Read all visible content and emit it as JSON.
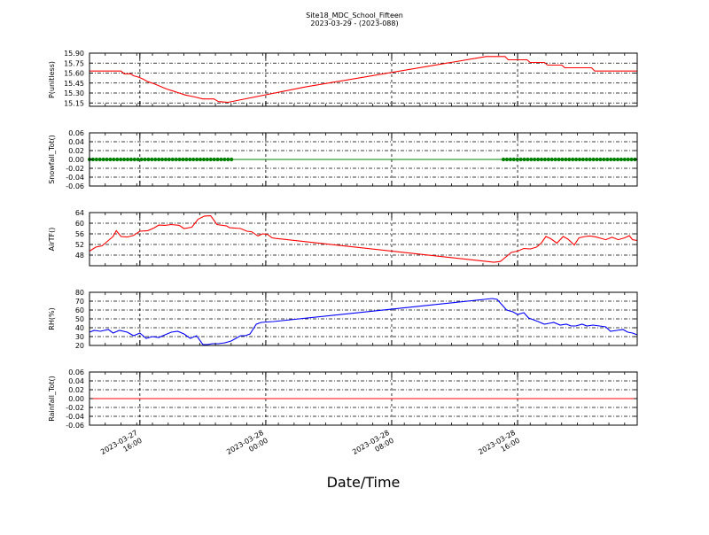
{
  "title": "Site18_MDC_School_Fifteen",
  "subtitle": "2023-03-29 - (2023-088)",
  "xlabel": "Date/Time",
  "x_ticks": [
    {
      "t": 16,
      "label": [
        "2023-03-27",
        "16:00"
      ]
    },
    {
      "t": 24,
      "label": [
        "2023-03-28",
        "00:00"
      ]
    },
    {
      "t": 32,
      "label": [
        "2023-03-28",
        "08:00"
      ]
    },
    {
      "t": 40,
      "label": [
        "2023-03-28",
        "16:00"
      ]
    }
  ],
  "x_range": [
    12.8,
    47.6
  ],
  "x_minor_ticks": [
    12.8,
    13.8,
    14.8,
    15.8,
    16.8,
    17.8,
    18.8,
    19.8,
    20.8,
    21.8,
    22.8,
    23.8,
    24.8,
    25.8,
    26.8,
    27.8,
    28.8,
    29.8,
    30.8,
    31.8,
    32.8,
    33.8,
    34.8,
    35.8,
    36.8,
    37.8,
    38.8,
    39.8,
    40.8,
    41.8,
    42.8,
    43.8,
    44.8,
    45.8,
    46.8,
    47.6
  ],
  "chart_data": [
    {
      "type": "line",
      "ylabel": "P(unitless)",
      "ylim": [
        15.1,
        15.9
      ],
      "yticks": [
        15.15,
        15.3,
        15.45,
        15.6,
        15.75,
        15.9
      ],
      "ytick_labels": [
        "15.15",
        "15.30",
        "15.45",
        "15.60",
        "15.75",
        "15.90"
      ],
      "grid": true,
      "series": [
        {
          "color": "#ff0000",
          "points": [
            [
              12.8,
              15.63
            ],
            [
              14.8,
              15.63
            ],
            [
              15.0,
              15.59
            ],
            [
              15.4,
              15.59
            ],
            [
              15.6,
              15.56
            ],
            [
              15.9,
              15.54
            ],
            [
              16.2,
              15.51
            ],
            [
              16.5,
              15.47
            ],
            [
              16.9,
              15.44
            ],
            [
              17.3,
              15.4
            ],
            [
              17.7,
              15.36
            ],
            [
              18.1,
              15.33
            ],
            [
              18.5,
              15.3
            ],
            [
              18.9,
              15.27
            ],
            [
              19.5,
              15.24
            ],
            [
              20.0,
              15.21
            ],
            [
              20.7,
              15.21
            ],
            [
              21.0,
              15.17
            ],
            [
              21.6,
              15.16
            ],
            [
              26.5,
              15.39
            ],
            [
              38.0,
              15.85
            ],
            [
              39.2,
              15.85
            ],
            [
              39.4,
              15.8
            ],
            [
              40.6,
              15.8
            ],
            [
              40.8,
              15.76
            ],
            [
              41.7,
              15.76
            ],
            [
              41.9,
              15.72
            ],
            [
              42.8,
              15.72
            ],
            [
              43.0,
              15.68
            ],
            [
              44.7,
              15.68
            ],
            [
              44.9,
              15.63
            ],
            [
              47.6,
              15.63
            ]
          ]
        }
      ]
    },
    {
      "type": "scatter",
      "ylabel": "Snowfall_Tot()",
      "ylim": [
        -0.06,
        0.06
      ],
      "yticks": [
        -0.06,
        -0.04,
        -0.02,
        0.0,
        0.02,
        0.04,
        0.06
      ],
      "ytick_labels": [
        "-0.06",
        "-0.04",
        "-0.02",
        "0.00",
        "0.02",
        "0.04",
        "0.06"
      ],
      "grid": true,
      "line_value": 0,
      "line_color": "#008000",
      "marker_color": "#008000",
      "marker_ranges": [
        [
          12.8,
          21.9
        ],
        [
          39.1,
          47.6
        ]
      ],
      "marker_step": 0.22
    },
    {
      "type": "line",
      "ylabel": "AirTF()",
      "ylim": [
        44,
        64
      ],
      "yticks": [
        48,
        52,
        56,
        60,
        64
      ],
      "ytick_labels": [
        "48",
        "52",
        "56",
        "60",
        "64"
      ],
      "grid": true,
      "series": [
        {
          "color": "#ff0000",
          "points": [
            [
              12.8,
              49.5
            ],
            [
              13.2,
              51
            ],
            [
              13.6,
              51.5
            ],
            [
              14.0,
              53.5
            ],
            [
              14.3,
              55
            ],
            [
              14.5,
              57.2
            ],
            [
              14.8,
              55
            ],
            [
              15.2,
              54.8
            ],
            [
              15.6,
              55.4
            ],
            [
              16.0,
              57.0
            ],
            [
              16.5,
              57.2
            ],
            [
              16.9,
              58.2
            ],
            [
              17.2,
              59.3
            ],
            [
              17.6,
              59.2
            ],
            [
              18.0,
              59.5
            ],
            [
              18.5,
              59.2
            ],
            [
              18.8,
              58.0
            ],
            [
              19.3,
              58.5
            ],
            [
              19.7,
              61.5
            ],
            [
              20.1,
              62.7
            ],
            [
              20.5,
              62.8
            ],
            [
              20.9,
              59.5
            ],
            [
              21.5,
              59.0
            ],
            [
              21.7,
              58.3
            ],
            [
              22.4,
              58.0
            ],
            [
              22.8,
              57.0
            ],
            [
              23.1,
              56.8
            ],
            [
              23.5,
              55.2
            ],
            [
              23.8,
              56.0
            ],
            [
              24.1,
              55.8
            ],
            [
              24.4,
              54.5
            ],
            [
              24.6,
              54.3
            ],
            [
              38.5,
              45.3
            ],
            [
              38.9,
              45.6
            ],
            [
              39.3,
              47.5
            ],
            [
              39.6,
              49.0
            ],
            [
              40.0,
              49.5
            ],
            [
              40.4,
              50.5
            ],
            [
              40.8,
              50.3
            ],
            [
              41.2,
              51.0
            ],
            [
              41.5,
              52.5
            ],
            [
              41.8,
              55.0
            ],
            [
              42.1,
              54.2
            ],
            [
              42.5,
              52.5
            ],
            [
              42.9,
              55.0
            ],
            [
              43.2,
              54.0
            ],
            [
              43.6,
              51.8
            ],
            [
              43.9,
              54.5
            ],
            [
              44.3,
              55.0
            ],
            [
              44.6,
              55.2
            ],
            [
              45.0,
              54.8
            ],
            [
              45.3,
              54.3
            ],
            [
              45.6,
              53.8
            ],
            [
              46.0,
              54.7
            ],
            [
              46.4,
              53.8
            ],
            [
              46.8,
              54.5
            ],
            [
              47.1,
              55.3
            ],
            [
              47.3,
              53.8
            ],
            [
              47.6,
              53.5
            ]
          ]
        }
      ]
    },
    {
      "type": "line",
      "ylabel": "RH(%)",
      "ylim": [
        20,
        80
      ],
      "yticks": [
        20,
        30,
        40,
        50,
        60,
        70,
        80
      ],
      "ytick_labels": [
        "20",
        "30",
        "40",
        "50",
        "60",
        "70",
        "80"
      ],
      "grid": true,
      "series": [
        {
          "color": "#0000ff",
          "points": [
            [
              12.8,
              35
            ],
            [
              13.1,
              37
            ],
            [
              13.5,
              36
            ],
            [
              14.0,
              38
            ],
            [
              14.3,
              34
            ],
            [
              14.7,
              37
            ],
            [
              15.2,
              35
            ],
            [
              15.6,
              31
            ],
            [
              16.0,
              34
            ],
            [
              16.4,
              28
            ],
            [
              16.8,
              30
            ],
            [
              17.2,
              29
            ],
            [
              17.6,
              32
            ],
            [
              18.0,
              35
            ],
            [
              18.4,
              36
            ],
            [
              18.8,
              33
            ],
            [
              19.2,
              28
            ],
            [
              19.6,
              31
            ],
            [
              20.0,
              21
            ],
            [
              20.3,
              21
            ],
            [
              20.6,
              22
            ],
            [
              21.0,
              22
            ],
            [
              21.4,
              23
            ],
            [
              21.8,
              25
            ],
            [
              22.1,
              28
            ],
            [
              22.4,
              31
            ],
            [
              22.7,
              31
            ],
            [
              23.0,
              33
            ],
            [
              23.4,
              44
            ],
            [
              23.7,
              46
            ],
            [
              24.5,
              47
            ],
            [
              38.4,
              73
            ],
            [
              38.7,
              72
            ],
            [
              39.0,
              66
            ],
            [
              39.3,
              60
            ],
            [
              39.7,
              58
            ],
            [
              40.0,
              55
            ],
            [
              40.4,
              57
            ],
            [
              40.7,
              51
            ],
            [
              41.0,
              49
            ],
            [
              41.3,
              47
            ],
            [
              41.7,
              44
            ],
            [
              42.0,
              45
            ],
            [
              42.3,
              46
            ],
            [
              42.7,
              43
            ],
            [
              43.1,
              44
            ],
            [
              43.4,
              42
            ],
            [
              43.7,
              42
            ],
            [
              44.1,
              44
            ],
            [
              44.4,
              42
            ],
            [
              44.8,
              43
            ],
            [
              45.2,
              42
            ],
            [
              45.6,
              41
            ],
            [
              45.9,
              36
            ],
            [
              46.3,
              37
            ],
            [
              46.7,
              38
            ],
            [
              47.0,
              35
            ],
            [
              47.3,
              34
            ],
            [
              47.6,
              32
            ]
          ]
        }
      ]
    },
    {
      "type": "line",
      "ylabel": "Rainfall_Tot()",
      "ylim": [
        -0.06,
        0.06
      ],
      "yticks": [
        -0.06,
        -0.04,
        -0.02,
        0.0,
        0.02,
        0.04,
        0.06
      ],
      "ytick_labels": [
        "-0.06",
        "-0.04",
        "-0.02",
        "0.00",
        "0.02",
        "0.04",
        "0.06"
      ],
      "grid": true,
      "series": [
        {
          "color": "#ff0000",
          "points": [
            [
              12.8,
              0
            ],
            [
              47.6,
              0
            ]
          ]
        }
      ]
    }
  ]
}
